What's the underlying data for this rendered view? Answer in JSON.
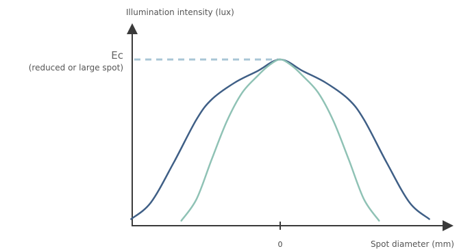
{
  "chart_data": {
    "type": "line",
    "ylabel": "Illumination intensity (lux)",
    "xlabel": "Spot diameter (mm)",
    "x_ticks": [
      "0"
    ],
    "xlim": [
      -1,
      1
    ],
    "ylim": [
      0,
      1
    ],
    "reference_line": {
      "label": "Ec",
      "sublabel": "(reduced or large spot)",
      "y": 1.0,
      "style": "dashed",
      "color": "#a8c6d6"
    },
    "series": [
      {
        "color": "#3f5f86",
        "x": [
          -0.98,
          -0.85,
          -0.7,
          -0.55,
          -0.45,
          -0.3,
          -0.15,
          0.0,
          0.15,
          0.3,
          0.45,
          0.55,
          0.7,
          0.85,
          0.98
        ],
        "y": [
          0.04,
          0.14,
          0.38,
          0.64,
          0.76,
          0.86,
          0.93,
          1.0,
          0.93,
          0.86,
          0.76,
          0.64,
          0.38,
          0.14,
          0.04
        ]
      },
      {
        "color": "#8fc2b5",
        "x": [
          -0.65,
          -0.55,
          -0.45,
          -0.35,
          -0.25,
          -0.15,
          -0.08,
          0.0,
          0.08,
          0.15,
          0.25,
          0.35,
          0.45,
          0.55,
          0.65
        ],
        "y": [
          0.03,
          0.16,
          0.4,
          0.63,
          0.8,
          0.9,
          0.96,
          1.0,
          0.96,
          0.9,
          0.8,
          0.63,
          0.4,
          0.16,
          0.03
        ]
      }
    ],
    "grid": false,
    "legend": "none"
  }
}
